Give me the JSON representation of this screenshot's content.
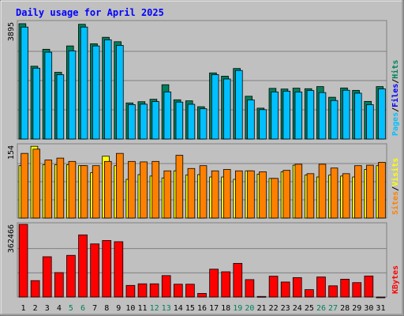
{
  "chart_data": {
    "type": "bar",
    "title": "Daily usage for April 2025",
    "categories": [
      "1",
      "2",
      "3",
      "4",
      "5",
      "6",
      "7",
      "8",
      "9",
      "10",
      "11",
      "12",
      "13",
      "14",
      "15",
      "16",
      "17",
      "18",
      "19",
      "20",
      "21",
      "22",
      "23",
      "24",
      "25",
      "26",
      "27",
      "28",
      "29",
      "30",
      "31"
    ],
    "weekend_days": [
      "5",
      "6",
      "12",
      "13",
      "19",
      "20",
      "26",
      "27"
    ],
    "colors": {
      "title": "#0000ff",
      "hits": "#008040",
      "hits_dark": "#00805c",
      "files": "#0000ff",
      "pages": "#00c0ff",
      "visits": "#ffff00",
      "sites": "#ff8000",
      "kbytes": "#ff0000",
      "weekend_label": "#00805c",
      "weekday_label": "#000000",
      "panel_bg": "#c0c0c0",
      "separator": "#000000",
      "slash": "#000000"
    },
    "panels": [
      {
        "name": "hits-files-pages",
        "ymax_label": "3895",
        "ymax": 3895,
        "gridlines": 3,
        "legend": [
          {
            "label": "Pages",
            "color": "#00c0ff"
          },
          {
            "label": "/",
            "color": "#000000"
          },
          {
            "label": "Files",
            "color": "#0000ff"
          },
          {
            "label": "/",
            "color": "#000000"
          },
          {
            "label": "Hits",
            "color": "#00805c"
          }
        ],
        "series": [
          {
            "name": "Hits",
            "values": [
              3843,
              2426,
              2991,
              2223,
              3102,
              3823,
              3175,
              3390,
              3242,
              1203,
              1244,
              1325,
              1810,
              1308,
              1273,
              1077,
              2203,
              2095,
              2350,
              1426,
              1029,
              1688,
              1666,
              1694,
              1677,
              1747,
              1392,
              1702,
              1622,
              1254,
              1747
            ]
          },
          {
            "name": "Pages",
            "values": [
              3731,
              2361,
              2893,
              2142,
              2939,
              3731,
              3102,
              3307,
              3120,
              1148,
              1162,
              1248,
              1570,
              1231,
              1158,
              1010,
              2146,
              2001,
              2285,
              1303,
              979,
              1570,
              1595,
              1566,
              1616,
              1548,
              1283,
              1626,
              1528,
              1145,
              1673
            ]
          }
        ]
      },
      {
        "name": "visits-sites",
        "ymax_label": "154",
        "ymax": 154,
        "gridlines": 3,
        "legend": [
          {
            "label": "Sites",
            "color": "#ff8000"
          },
          {
            "label": "/",
            "color": "#000000"
          },
          {
            "label": "Visits",
            "color": "#ffff00"
          }
        ],
        "series": [
          {
            "name": "Visits",
            "values": [
              111,
              152,
              113,
              113,
              113,
              111,
              96,
              131,
              111,
              82,
              92,
              89,
              85,
              100,
              91,
              92,
              87,
              87,
              82,
              100,
              93,
              84,
              98,
              112,
              91,
              87,
              91,
              89,
              87,
              103,
              111
            ]
          },
          {
            "name": "Sites",
            "values": [
              137,
              146,
              123,
              127,
              120,
              111,
              111,
              120,
              137,
              120,
              119,
              120,
              100,
              133,
              105,
              111,
              100,
              103,
              100,
              100,
              98,
              84,
              101,
              114,
              94,
              114,
              106,
              94,
              111,
              112,
              118
            ]
          }
        ]
      },
      {
        "name": "kbytes",
        "ymax_label": "362466",
        "ymax": 362466,
        "gridlines": 2,
        "legend": [
          {
            "label": "KBytes",
            "color": "#ff0000"
          }
        ],
        "series": [
          {
            "name": "KBytes",
            "values": [
              363000,
              82000,
              201000,
              122000,
              208000,
              310000,
              265000,
              282000,
              276000,
              58000,
              66000,
              66000,
              107000,
              64000,
              64000,
              18000,
              139000,
              126000,
              168000,
              87000,
              3000,
              104000,
              75000,
              97000,
              37000,
              100000,
              56000,
              89000,
              72000,
              105000,
              0
            ]
          }
        ]
      }
    ]
  }
}
